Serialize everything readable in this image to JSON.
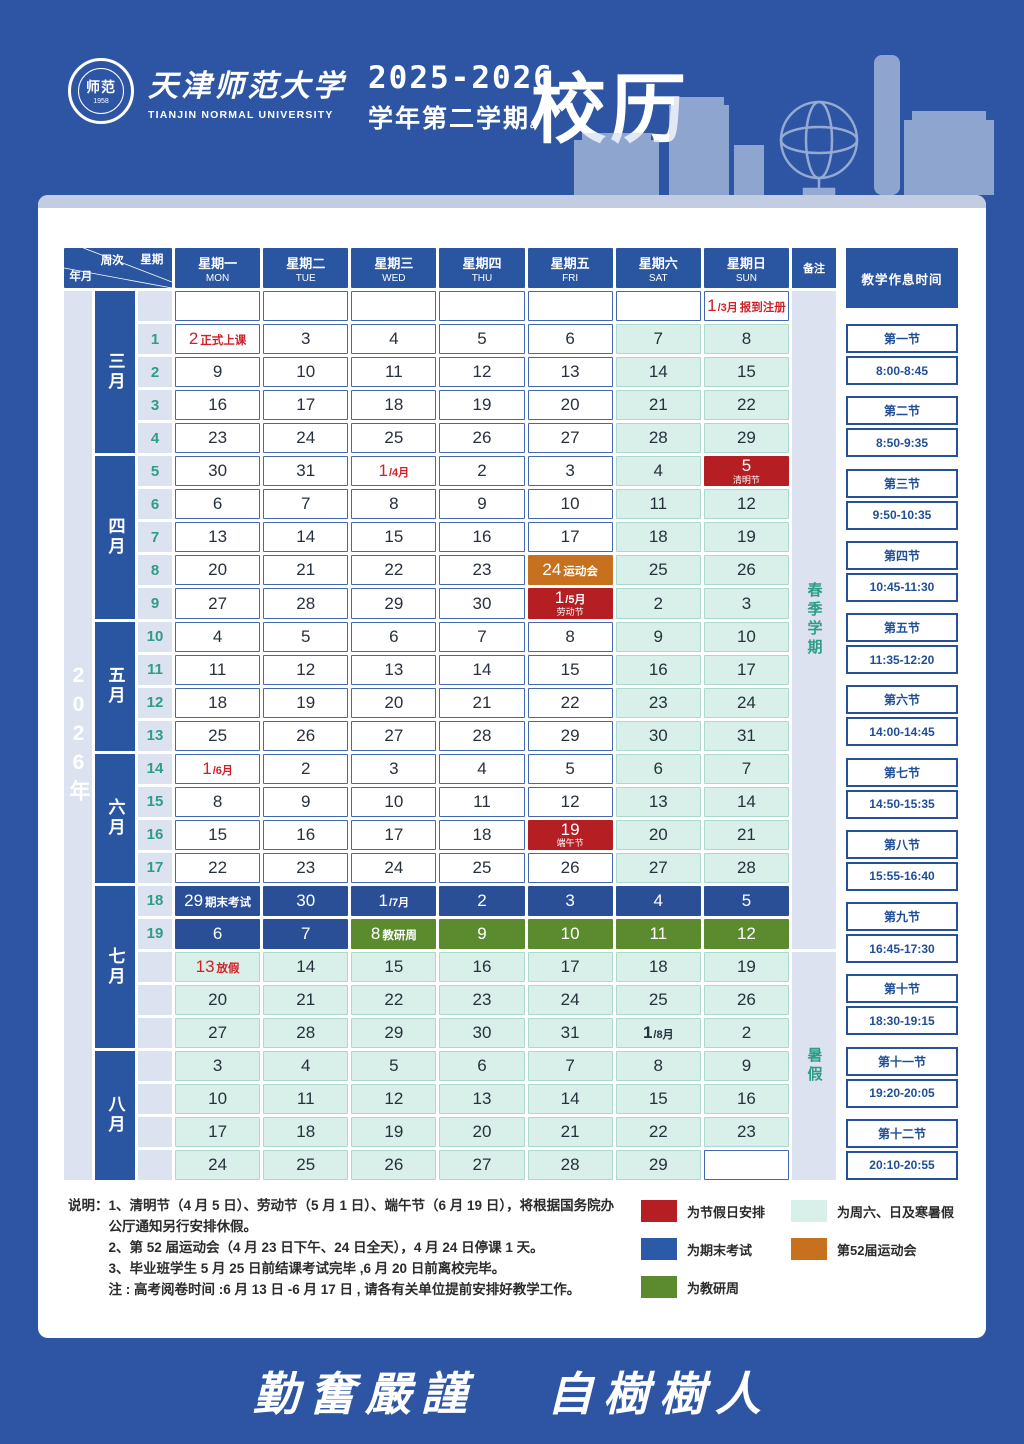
{
  "header": {
    "logo": {
      "seal_text": "师范",
      "seal_year": "1958"
    },
    "university_zh": "天津师范大学",
    "university_en": "TIANJIN NORMAL UNIVERSITY",
    "year_range": "2025-2026",
    "semester": "学年第二学期",
    "semester_dot": "。",
    "title": "校历"
  },
  "calendar": {
    "corner": {
      "week_label": "周次",
      "weekday_label": "星期",
      "yearmonth_label": "年月"
    },
    "remark_header": "备注",
    "year_label": "2026年",
    "day_headers": [
      {
        "zh": "星期一",
        "en": "MON"
      },
      {
        "zh": "星期二",
        "en": "TUE"
      },
      {
        "zh": "星期三",
        "en": "WED"
      },
      {
        "zh": "星期四",
        "en": "THU"
      },
      {
        "zh": "星期五",
        "en": "FRI"
      },
      {
        "zh": "星期六",
        "en": "SAT"
      },
      {
        "zh": "星期日",
        "en": "SUN"
      }
    ],
    "months": [
      {
        "label": "三月",
        "rows": 5
      },
      {
        "label": "四月",
        "rows": 5
      },
      {
        "label": "五月",
        "rows": 4
      },
      {
        "label": "六月",
        "rows": 4
      },
      {
        "label": "七月",
        "rows": 5
      },
      {
        "label": "八月",
        "rows": 4
      }
    ],
    "remarks": [
      {
        "label": "春季学期",
        "rows": 20
      },
      {
        "label": "暑假",
        "rows": 7
      }
    ],
    "rows": [
      {
        "week": "",
        "cells": [
          {
            "t": "",
            "bg": "w"
          },
          {
            "t": "",
            "bg": "w"
          },
          {
            "t": "",
            "bg": "w"
          },
          {
            "t": "",
            "bg": "w"
          },
          {
            "t": "",
            "bg": "w"
          },
          {
            "t": "",
            "bg": "w"
          },
          {
            "t": "1",
            "suf": "/3月",
            "note": "报到注册",
            "bg": "w",
            "fg": "red"
          }
        ]
      },
      {
        "week": "1",
        "cells": [
          {
            "t": "2",
            "note": "正式上课",
            "bg": "w",
            "fg": "red"
          },
          {
            "t": "3",
            "bg": "w"
          },
          {
            "t": "4",
            "bg": "w"
          },
          {
            "t": "5",
            "bg": "w"
          },
          {
            "t": "6",
            "bg": "w"
          },
          {
            "t": "7",
            "bg": "m"
          },
          {
            "t": "8",
            "bg": "m"
          }
        ]
      },
      {
        "week": "2",
        "cells": [
          {
            "t": "9",
            "bg": "w"
          },
          {
            "t": "10",
            "bg": "w"
          },
          {
            "t": "11",
            "bg": "w"
          },
          {
            "t": "12",
            "bg": "w"
          },
          {
            "t": "13",
            "bg": "w"
          },
          {
            "t": "14",
            "bg": "m"
          },
          {
            "t": "15",
            "bg": "m"
          }
        ]
      },
      {
        "week": "3",
        "cells": [
          {
            "t": "16",
            "bg": "w"
          },
          {
            "t": "17",
            "bg": "w"
          },
          {
            "t": "18",
            "bg": "w"
          },
          {
            "t": "19",
            "bg": "w"
          },
          {
            "t": "20",
            "bg": "w"
          },
          {
            "t": "21",
            "bg": "m"
          },
          {
            "t": "22",
            "bg": "m"
          }
        ]
      },
      {
        "week": "4",
        "cells": [
          {
            "t": "23",
            "bg": "w"
          },
          {
            "t": "24",
            "bg": "w"
          },
          {
            "t": "25",
            "bg": "w"
          },
          {
            "t": "26",
            "bg": "w"
          },
          {
            "t": "27",
            "bg": "w"
          },
          {
            "t": "28",
            "bg": "m"
          },
          {
            "t": "29",
            "bg": "m"
          }
        ]
      },
      {
        "week": "5",
        "cells": [
          {
            "t": "30",
            "bg": "w"
          },
          {
            "t": "31",
            "bg": "w"
          },
          {
            "t": "1",
            "suf": "/4月",
            "bg": "w",
            "fg": "red"
          },
          {
            "t": "2",
            "bg": "w"
          },
          {
            "t": "3",
            "bg": "w"
          },
          {
            "t": "4",
            "bg": "m"
          },
          {
            "t": "5",
            "below": "清明节",
            "bg": "r"
          }
        ]
      },
      {
        "week": "6",
        "cells": [
          {
            "t": "6",
            "bg": "w"
          },
          {
            "t": "7",
            "bg": "w"
          },
          {
            "t": "8",
            "bg": "w"
          },
          {
            "t": "9",
            "bg": "w"
          },
          {
            "t": "10",
            "bg": "w"
          },
          {
            "t": "11",
            "bg": "m"
          },
          {
            "t": "12",
            "bg": "m"
          }
        ]
      },
      {
        "week": "7",
        "cells": [
          {
            "t": "13",
            "bg": "w"
          },
          {
            "t": "14",
            "bg": "w"
          },
          {
            "t": "15",
            "bg": "w"
          },
          {
            "t": "16",
            "bg": "w"
          },
          {
            "t": "17",
            "bg": "w"
          },
          {
            "t": "18",
            "bg": "m"
          },
          {
            "t": "19",
            "bg": "m"
          }
        ]
      },
      {
        "week": "8",
        "cells": [
          {
            "t": "20",
            "bg": "w"
          },
          {
            "t": "21",
            "bg": "w"
          },
          {
            "t": "22",
            "bg": "w"
          },
          {
            "t": "23",
            "bg": "w"
          },
          {
            "t": "24",
            "note": "运动会",
            "bg": "o"
          },
          {
            "t": "25",
            "bg": "m"
          },
          {
            "t": "26",
            "bg": "m"
          }
        ]
      },
      {
        "week": "9",
        "cells": [
          {
            "t": "27",
            "bg": "w"
          },
          {
            "t": "28",
            "bg": "w"
          },
          {
            "t": "29",
            "bg": "w"
          },
          {
            "t": "30",
            "bg": "w"
          },
          {
            "t": "1",
            "suf": "/5月",
            "below": "劳动节",
            "bg": "r"
          },
          {
            "t": "2",
            "bg": "m"
          },
          {
            "t": "3",
            "bg": "m"
          }
        ]
      },
      {
        "week": "10",
        "cells": [
          {
            "t": "4",
            "bg": "w"
          },
          {
            "t": "5",
            "bg": "w"
          },
          {
            "t": "6",
            "bg": "w"
          },
          {
            "t": "7",
            "bg": "w"
          },
          {
            "t": "8",
            "bg": "w"
          },
          {
            "t": "9",
            "bg": "m"
          },
          {
            "t": "10",
            "bg": "m"
          }
        ]
      },
      {
        "week": "11",
        "cells": [
          {
            "t": "11",
            "bg": "w"
          },
          {
            "t": "12",
            "bg": "w"
          },
          {
            "t": "13",
            "bg": "w"
          },
          {
            "t": "14",
            "bg": "w"
          },
          {
            "t": "15",
            "bg": "w"
          },
          {
            "t": "16",
            "bg": "m"
          },
          {
            "t": "17",
            "bg": "m"
          }
        ]
      },
      {
        "week": "12",
        "cells": [
          {
            "t": "18",
            "bg": "w"
          },
          {
            "t": "19",
            "bg": "w"
          },
          {
            "t": "20",
            "bg": "w"
          },
          {
            "t": "21",
            "bg": "w"
          },
          {
            "t": "22",
            "bg": "w"
          },
          {
            "t": "23",
            "bg": "m"
          },
          {
            "t": "24",
            "bg": "m"
          }
        ]
      },
      {
        "week": "13",
        "cells": [
          {
            "t": "25",
            "bg": "w"
          },
          {
            "t": "26",
            "bg": "w"
          },
          {
            "t": "27",
            "bg": "w"
          },
          {
            "t": "28",
            "bg": "w"
          },
          {
            "t": "29",
            "bg": "w"
          },
          {
            "t": "30",
            "bg": "m"
          },
          {
            "t": "31",
            "bg": "m"
          }
        ]
      },
      {
        "week": "14",
        "cells": [
          {
            "t": "1",
            "suf": "/6月",
            "bg": "w",
            "fg": "red"
          },
          {
            "t": "2",
            "bg": "w"
          },
          {
            "t": "3",
            "bg": "w"
          },
          {
            "t": "4",
            "bg": "w"
          },
          {
            "t": "5",
            "bg": "w"
          },
          {
            "t": "6",
            "bg": "m"
          },
          {
            "t": "7",
            "bg": "m"
          }
        ]
      },
      {
        "week": "15",
        "cells": [
          {
            "t": "8",
            "bg": "w"
          },
          {
            "t": "9",
            "bg": "w"
          },
          {
            "t": "10",
            "bg": "w"
          },
          {
            "t": "11",
            "bg": "w"
          },
          {
            "t": "12",
            "bg": "w"
          },
          {
            "t": "13",
            "bg": "m"
          },
          {
            "t": "14",
            "bg": "m"
          }
        ]
      },
      {
        "week": "16",
        "cells": [
          {
            "t": "15",
            "bg": "w"
          },
          {
            "t": "16",
            "bg": "w"
          },
          {
            "t": "17",
            "bg": "w"
          },
          {
            "t": "18",
            "bg": "w"
          },
          {
            "t": "19",
            "below": "端午节",
            "bg": "r"
          },
          {
            "t": "20",
            "bg": "m"
          },
          {
            "t": "21",
            "bg": "m"
          }
        ]
      },
      {
        "week": "17",
        "cells": [
          {
            "t": "22",
            "bg": "w"
          },
          {
            "t": "23",
            "bg": "w"
          },
          {
            "t": "24",
            "bg": "w"
          },
          {
            "t": "25",
            "bg": "w"
          },
          {
            "t": "26",
            "bg": "w"
          },
          {
            "t": "27",
            "bg": "m"
          },
          {
            "t": "28",
            "bg": "m"
          }
        ]
      },
      {
        "week": "18",
        "cells": [
          {
            "t": "29",
            "note": "期末考试",
            "bg": "e"
          },
          {
            "t": "30",
            "bg": "e"
          },
          {
            "t": "1",
            "suf": "/7月",
            "bg": "e"
          },
          {
            "t": "2",
            "bg": "e"
          },
          {
            "t": "3",
            "bg": "e"
          },
          {
            "t": "4",
            "bg": "e"
          },
          {
            "t": "5",
            "bg": "e"
          }
        ]
      },
      {
        "week": "19",
        "cells": [
          {
            "t": "6",
            "bg": "e"
          },
          {
            "t": "7",
            "bg": "e"
          },
          {
            "t": "8",
            "note": "教研周",
            "bg": "g"
          },
          {
            "t": "9",
            "bg": "g"
          },
          {
            "t": "10",
            "bg": "g"
          },
          {
            "t": "11",
            "bg": "g"
          },
          {
            "t": "12",
            "bg": "g"
          }
        ]
      },
      {
        "week": "",
        "cells": [
          {
            "t": "13",
            "note": "放假",
            "bg": "m",
            "fg": "red"
          },
          {
            "t": "14",
            "bg": "m"
          },
          {
            "t": "15",
            "bg": "m"
          },
          {
            "t": "16",
            "bg": "m"
          },
          {
            "t": "17",
            "bg": "m"
          },
          {
            "t": "18",
            "bg": "m"
          },
          {
            "t": "19",
            "bg": "m"
          }
        ]
      },
      {
        "week": "",
        "cells": [
          {
            "t": "20",
            "bg": "m"
          },
          {
            "t": "21",
            "bg": "m"
          },
          {
            "t": "22",
            "bg": "m"
          },
          {
            "t": "23",
            "bg": "m"
          },
          {
            "t": "24",
            "bg": "m"
          },
          {
            "t": "25",
            "bg": "m"
          },
          {
            "t": "26",
            "bg": "m"
          }
        ]
      },
      {
        "week": "",
        "cells": [
          {
            "t": "27",
            "bg": "m"
          },
          {
            "t": "28",
            "bg": "m"
          },
          {
            "t": "29",
            "bg": "m"
          },
          {
            "t": "30",
            "bg": "m"
          },
          {
            "t": "31",
            "bg": "m"
          },
          {
            "t": "1",
            "suf": "/8月",
            "bg": "m",
            "fb": true
          },
          {
            "t": "2",
            "bg": "m"
          }
        ]
      },
      {
        "week": "",
        "cells": [
          {
            "t": "3",
            "bg": "m"
          },
          {
            "t": "4",
            "bg": "m"
          },
          {
            "t": "5",
            "bg": "m"
          },
          {
            "t": "6",
            "bg": "m"
          },
          {
            "t": "7",
            "bg": "m"
          },
          {
            "t": "8",
            "bg": "m"
          },
          {
            "t": "9",
            "bg": "m"
          }
        ]
      },
      {
        "week": "",
        "cells": [
          {
            "t": "10",
            "bg": "m"
          },
          {
            "t": "11",
            "bg": "m"
          },
          {
            "t": "12",
            "bg": "m"
          },
          {
            "t": "13",
            "bg": "m"
          },
          {
            "t": "14",
            "bg": "m"
          },
          {
            "t": "15",
            "bg": "m"
          },
          {
            "t": "16",
            "bg": "m"
          }
        ]
      },
      {
        "week": "",
        "cells": [
          {
            "t": "17",
            "bg": "m"
          },
          {
            "t": "18",
            "bg": "m"
          },
          {
            "t": "19",
            "bg": "m"
          },
          {
            "t": "20",
            "bg": "m"
          },
          {
            "t": "21",
            "bg": "m"
          },
          {
            "t": "22",
            "bg": "m"
          },
          {
            "t": "23",
            "bg": "m"
          }
        ]
      },
      {
        "week": "",
        "cells": [
          {
            "t": "24",
            "bg": "m"
          },
          {
            "t": "25",
            "bg": "m"
          },
          {
            "t": "26",
            "bg": "m"
          },
          {
            "t": "27",
            "bg": "m"
          },
          {
            "t": "28",
            "bg": "m"
          },
          {
            "t": "29",
            "bg": "m"
          },
          {
            "t": "",
            "bg": "w"
          }
        ]
      }
    ]
  },
  "schedule": {
    "title": "教学作息时间",
    "periods": [
      {
        "name": "第一节",
        "time": "8:00-8:45"
      },
      {
        "name": "第二节",
        "time": "8:50-9:35"
      },
      {
        "name": "第三节",
        "time": "9:50-10:35"
      },
      {
        "name": "第四节",
        "time": "10:45-11:30"
      },
      {
        "name": "第五节",
        "time": "11:35-12:20"
      },
      {
        "name": "第六节",
        "time": "14:00-14:45"
      },
      {
        "name": "第七节",
        "time": "14:50-15:35"
      },
      {
        "name": "第八节",
        "time": "15:55-16:40"
      },
      {
        "name": "第九节",
        "time": "16:45-17:30"
      },
      {
        "name": "第十节",
        "time": "18:30-19:15"
      },
      {
        "name": "第十一节",
        "time": "19:20-20:05"
      },
      {
        "name": "第十二节",
        "time": "20:10-20:55"
      }
    ]
  },
  "notes": {
    "label": "说明：",
    "lines": [
      "1、清明节（4 月 5 日）、劳动节（5 月 1 日）、端午节（6 月 19 日），将根据国务院办公厅通知另行安排休假。",
      "2、第 52 届运动会（4 月 23 日下午、24 日全天），4 月 24 日停课 1 天。",
      "3、毕业班学生 5 月 25 日前结课考试完毕 ,6 月 20 日前离校完毕。",
      "注 : 高考阅卷时间 :6 月 13 日 -6 月 17 日 , 请各有关单位提前安排好教学工作。"
    ]
  },
  "legend": {
    "items": [
      {
        "color": "#b51f24",
        "label": "为节假日安排"
      },
      {
        "color": "#2a5aa8",
        "label": "为期末考试"
      },
      {
        "color": "#5c8b2f",
        "label": "为教研周"
      },
      {
        "color": "#d9efe9",
        "label": "为周六、日及寒暑假"
      },
      {
        "color": "#c7711f",
        "label": "第52届运动会"
      }
    ]
  },
  "footer": {
    "motto_left": "勤奮嚴謹",
    "motto_right": "自樹樹人"
  }
}
